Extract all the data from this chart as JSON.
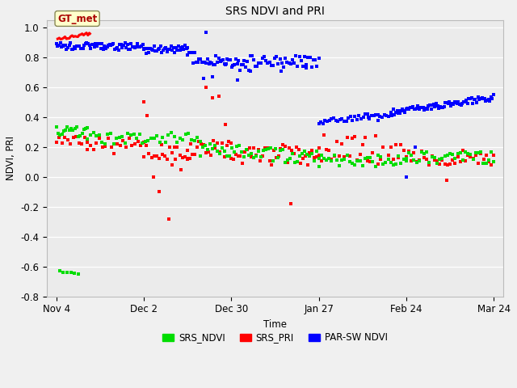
{
  "title": "SRS NDVI and PRI",
  "xlabel": "Time",
  "ylabel": "NDVI, PRI",
  "ylim": [
    -0.8,
    1.05
  ],
  "yticks": [
    -0.8,
    -0.6,
    -0.4,
    -0.2,
    0.0,
    0.2,
    0.4,
    0.6,
    0.8,
    1.0
  ],
  "fig_bg_color": "#f0f0f0",
  "plot_bg_color": "#ebebeb",
  "grid_color": "#ffffff",
  "ndvi_color": "#00dd00",
  "pri_color": "#ff0000",
  "parsw_color": "#0000ff",
  "gt_met_box_facecolor": "#ffffcc",
  "gt_met_box_edgecolor": "#888855",
  "gt_met_text_color": "#aa0000",
  "legend_labels": [
    "SRS_NDVI",
    "SRS_PRI",
    "PAR-SW NDVI"
  ],
  "annotation_text": "GT_met",
  "tick_positions": [
    0,
    28,
    56,
    84,
    112,
    140
  ],
  "tick_labels": [
    "Nov 4",
    "Dec 2",
    "Dec 30",
    "Jan 27",
    "Feb 24",
    "Mar 24"
  ],
  "xlim": [
    -3,
    143
  ],
  "marker_s": 9
}
